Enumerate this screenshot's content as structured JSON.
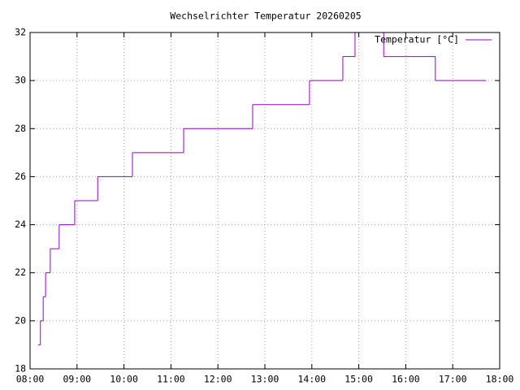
{
  "chart_data": {
    "type": "line",
    "style": "steps",
    "title": "Wechselrichter Temperatur 20260205",
    "x": [
      8.17,
      8.22,
      8.28,
      8.33,
      8.43,
      8.62,
      8.95,
      9.44,
      10.18,
      11.27,
      12.74,
      13.95,
      14.66,
      14.92,
      15.53,
      16.63,
      17.71
    ],
    "series": [
      {
        "name": "Temperatur [°C]",
        "color": "#9400d3",
        "values": [
          19,
          20,
          21,
          22,
          23,
          24,
          25,
          26,
          27,
          28,
          29,
          30,
          31,
          32,
          31,
          30,
          30
        ]
      }
    ],
    "xlim": [
      8,
      18
    ],
    "xticks": [
      {
        "value": 8,
        "label": "08:00"
      },
      {
        "value": 9,
        "label": "09:00"
      },
      {
        "value": 10,
        "label": "10:00"
      },
      {
        "value": 11,
        "label": "11:00"
      },
      {
        "value": 12,
        "label": "12:00"
      },
      {
        "value": 13,
        "label": "13:00"
      },
      {
        "value": 14,
        "label": "14:00"
      },
      {
        "value": 15,
        "label": "15:00"
      },
      {
        "value": 16,
        "label": "16:00"
      },
      {
        "value": 17,
        "label": "17:00"
      },
      {
        "value": 18,
        "label": "18:00"
      }
    ],
    "ylim": [
      18,
      32
    ],
    "yticks": [
      18,
      20,
      22,
      24,
      26,
      28,
      30,
      32
    ],
    "grid": true,
    "legend": "top-right"
  }
}
